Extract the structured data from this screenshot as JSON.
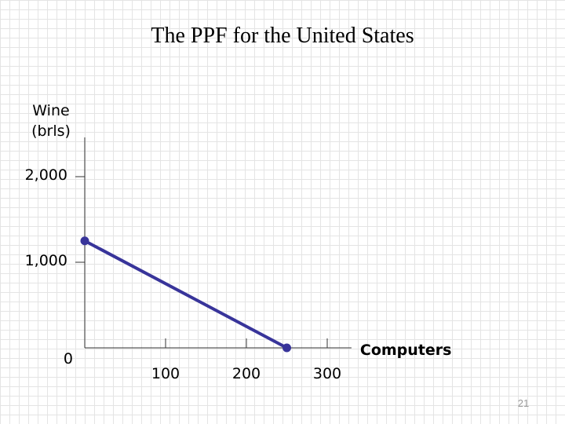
{
  "slide": {
    "number": "21"
  },
  "chart_data": {
    "type": "line",
    "title": "The PPF for the United States",
    "ylabel": "Wine (brls)",
    "xlabel": "Computers",
    "xlim": [
      0,
      330
    ],
    "ylim": [
      0,
      2400
    ],
    "x_ticks": [
      {
        "value": 100,
        "label": "100"
      },
      {
        "value": 200,
        "label": "200"
      },
      {
        "value": 300,
        "label": "300"
      }
    ],
    "y_ticks": [
      {
        "value": 2000,
        "label": "2,000"
      },
      {
        "value": 1000,
        "label": "1,000"
      }
    ],
    "origin_label": "0",
    "grid": false,
    "series": [
      {
        "color": "#38349a",
        "points": [
          [
            0,
            1250
          ],
          [
            250,
            0
          ]
        ]
      }
    ]
  }
}
